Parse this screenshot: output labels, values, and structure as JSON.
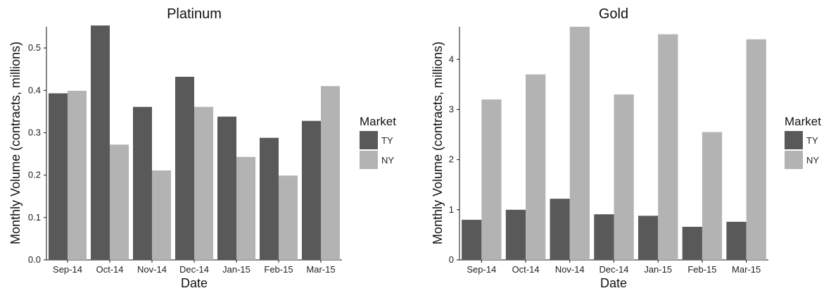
{
  "chart_data": [
    {
      "type": "bar",
      "title": "Platinum",
      "xlabel": "Date",
      "ylabel": "Monthly Volume (contracts, millions)",
      "categories": [
        "Sep-14",
        "Oct-14",
        "Nov-14",
        "Dec-14",
        "Jan-15",
        "Feb-15",
        "Mar-15"
      ],
      "series": [
        {
          "name": "TY",
          "color": "#595959",
          "values": [
            0.393,
            0.553,
            0.361,
            0.432,
            0.338,
            0.288,
            0.328
          ]
        },
        {
          "name": "NY",
          "color": "#b3b3b3",
          "values": [
            0.399,
            0.272,
            0.211,
            0.361,
            0.243,
            0.199,
            0.41
          ]
        }
      ],
      "ylim": [
        0,
        0.55
      ],
      "yticks": [
        0.0,
        0.1,
        0.2,
        0.3,
        0.4,
        0.5
      ],
      "ytick_labels": [
        "0.0",
        "0.1",
        "0.2",
        "0.3",
        "0.4",
        "0.5"
      ],
      "legend_title": "Market",
      "legend_position": "right",
      "grid": false
    },
    {
      "type": "bar",
      "title": "Gold",
      "xlabel": "Date",
      "ylabel": "Monthly Volume (contracts, millions)",
      "categories": [
        "Sep-14",
        "Oct-14",
        "Nov-14",
        "Dec-14",
        "Jan-15",
        "Feb-15",
        "Mar-15"
      ],
      "series": [
        {
          "name": "TY",
          "color": "#595959",
          "values": [
            0.8,
            1.0,
            1.22,
            0.91,
            0.88,
            0.66,
            0.76
          ]
        },
        {
          "name": "NY",
          "color": "#b3b3b3",
          "values": [
            3.2,
            3.7,
            4.65,
            3.3,
            4.5,
            2.55,
            4.4
          ]
        }
      ],
      "ylim": [
        0,
        4.65
      ],
      "yticks": [
        0,
        1,
        2,
        3,
        4
      ],
      "ytick_labels": [
        "0",
        "1",
        "2",
        "3",
        "4"
      ],
      "legend_title": "Market",
      "legend_position": "right",
      "grid": false
    }
  ]
}
